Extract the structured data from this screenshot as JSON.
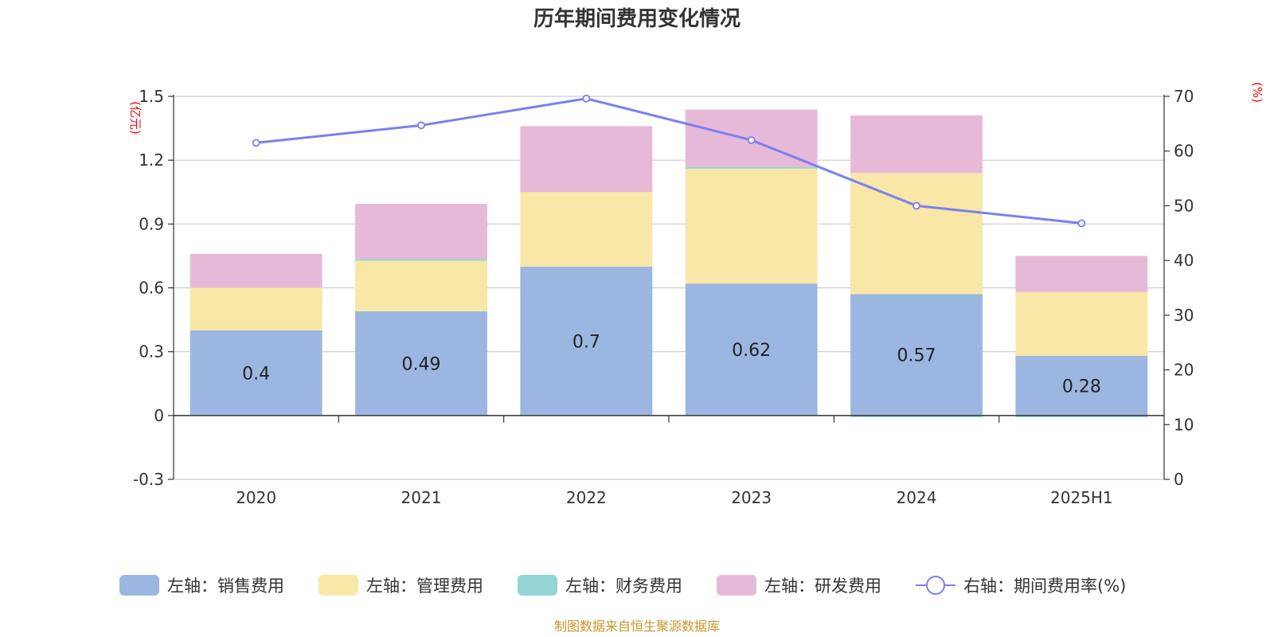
{
  "chart_data": {
    "type": "bar",
    "title": "历年期间费用变化情况",
    "left_axis_unit": "(亿元)",
    "right_axis_unit": "(%)",
    "categories": [
      "2020",
      "2021",
      "2022",
      "2023",
      "2024",
      "2025H1"
    ],
    "left_ylim": [
      -0.3,
      1.5
    ],
    "left_ticks": [
      -0.3,
      0,
      0.3,
      0.6,
      0.9,
      1.2,
      1.5
    ],
    "left_tick_labels": [
      "-0.3",
      "0",
      "0.3",
      "0.6",
      "0.9",
      "1.2",
      "1.5"
    ],
    "right_ylim": [
      0,
      70
    ],
    "right_ticks": [
      0,
      10,
      20,
      30,
      40,
      50,
      60,
      70
    ],
    "right_tick_labels": [
      "0",
      "10",
      "20",
      "30",
      "40",
      "50",
      "60",
      "70"
    ],
    "grid": true,
    "legend_position": "bottom",
    "series": [
      {
        "name": "左轴：销售费用",
        "axis": "left",
        "kind": "bar",
        "color": "#9bb7e1",
        "values": [
          0.4,
          0.49,
          0.7,
          0.62,
          0.57,
          0.28
        ],
        "labels": [
          "0.4",
          "0.49",
          "0.7",
          "0.62",
          "0.57",
          "0.28"
        ]
      },
      {
        "name": "左轴：管理费用",
        "axis": "left",
        "kind": "bar",
        "color": "#f8e7a7",
        "values": [
          0.2,
          0.24,
          0.35,
          0.54,
          0.57,
          0.3
        ]
      },
      {
        "name": "左轴：财务费用",
        "axis": "left",
        "kind": "bar",
        "color": "#93d4d4",
        "values": [
          0.0,
          0.005,
          0.0,
          0.008,
          -0.005,
          -0.005
        ]
      },
      {
        "name": "左轴：研发费用",
        "axis": "left",
        "kind": "bar",
        "color": "#e7b9d9",
        "values": [
          0.16,
          0.26,
          0.31,
          0.27,
          0.27,
          0.17
        ]
      },
      {
        "name": "右轴：期间费用率(%)",
        "axis": "right",
        "kind": "line",
        "color": "#7b7ff0",
        "values": [
          61.5,
          64.7,
          69.6,
          62.0,
          50.0,
          46.8
        ]
      }
    ]
  },
  "source": "制图数据来自恒生聚源数据库"
}
